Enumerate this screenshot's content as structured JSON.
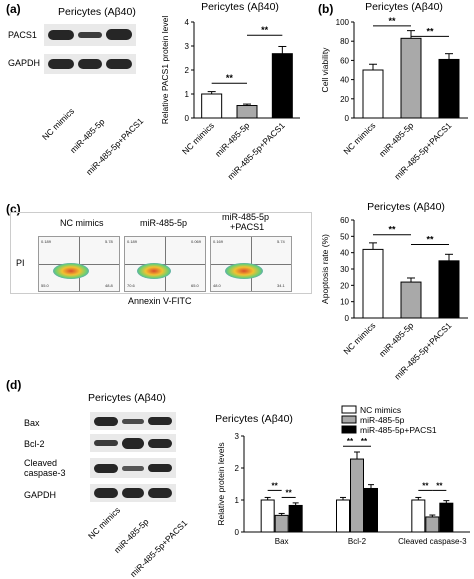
{
  "panels": {
    "a": {
      "label": "(a)",
      "blot_title": "Pericytes (Aβ40)",
      "blot_rows": [
        "PACS1",
        "GAPDH"
      ],
      "sample_labels": [
        "NC mimics",
        "miR-485-5p",
        "miR-485-5p+PACS1"
      ]
    },
    "b": {
      "label": "(b)"
    },
    "c": {
      "label": "(c)",
      "flow_titles": [
        "NC mimics",
        "miR-485-5p",
        "miR-485-5p\n+PACS1"
      ],
      "flow_title_lines": [
        [
          "NC mimics"
        ],
        [
          "miR-485-5p"
        ],
        [
          "miR-485-5p",
          "+PACS1"
        ]
      ],
      "flow_ylabel": "PI",
      "flow_xlabel": "Annexin V-FITC",
      "quadrant_values": [
        {
          "q1": "0.189",
          "q2": "5.78",
          "q3": "48.8",
          "q4": "55.0"
        },
        {
          "q1": "0.189",
          "q2": "0.069",
          "q3": "65.0",
          "q4": "70.6"
        },
        {
          "q1": "0.169",
          "q2": "5.74",
          "q3": "34.1",
          "q4": "48.0"
        }
      ]
    },
    "d": {
      "label": "(d)",
      "blot_title": "Pericytes (Aβ40)",
      "blot_rows": [
        "Bax",
        "Bcl-2",
        "Cleaved\ncaspase-3",
        "GAPDH"
      ],
      "blot_row_lines": [
        [
          "Bax"
        ],
        [
          "Bcl-2"
        ],
        [
          "Cleaved",
          "caspase-3"
        ],
        [
          "GAPDH"
        ]
      ],
      "sample_labels": [
        "NC mimics",
        "miR-485-5p",
        "miR-485-5p+PACS1"
      ]
    }
  },
  "colors": {
    "nc": "#ffffff",
    "mir": "#a9a9a9",
    "mir_pacs1": "#000000"
  },
  "chart_data": [
    {
      "id": "a",
      "type": "bar",
      "title": "Pericytes (Aβ40)",
      "ylabel": "Relative PACS1 protein level",
      "categories": [
        "NC mimics",
        "miR-485-5p",
        "miR-485-5p+PACS1"
      ],
      "values": [
        1.0,
        0.52,
        2.68
      ],
      "errors": [
        0.1,
        0.06,
        0.3
      ],
      "ylim": [
        0,
        4
      ],
      "yticks": [
        0,
        1,
        2,
        3,
        4
      ],
      "colors": [
        "#ffffff",
        "#a9a9a9",
        "#000000"
      ],
      "significance": [
        {
          "from": 0,
          "to": 1,
          "y": 1.45,
          "text": "**"
        },
        {
          "from": 1,
          "to": 2,
          "y": 3.45,
          "text": "**"
        }
      ]
    },
    {
      "id": "b",
      "type": "bar",
      "title": "Pericytes (Aβ40)",
      "ylabel": "Cell viability",
      "categories": [
        "NC mimics",
        "miR-485-5p",
        "miR-485-5p+PACS1"
      ],
      "values": [
        50,
        83,
        61
      ],
      "errors": [
        6,
        8,
        6
      ],
      "ylim": [
        0,
        100
      ],
      "yticks": [
        0,
        20,
        40,
        60,
        80,
        100
      ],
      "colors": [
        "#ffffff",
        "#a9a9a9",
        "#000000"
      ],
      "significance": [
        {
          "from": 0,
          "to": 1,
          "y": 96,
          "text": "**"
        },
        {
          "from": 1,
          "to": 2,
          "y": 85,
          "text": "**"
        }
      ]
    },
    {
      "id": "c",
      "type": "bar",
      "title": "Pericytes (Aβ40)",
      "ylabel": "Apoptosis rate (%)",
      "categories": [
        "NC mimics",
        "miR-485-5p",
        "miR-485-5p+PACS1"
      ],
      "values": [
        42,
        22,
        35
      ],
      "errors": [
        4,
        2.5,
        4
      ],
      "ylim": [
        0,
        60
      ],
      "yticks": [
        0,
        10,
        20,
        30,
        40,
        50,
        60
      ],
      "colors": [
        "#ffffff",
        "#a9a9a9",
        "#000000"
      ],
      "significance": [
        {
          "from": 0,
          "to": 1,
          "y": 51,
          "text": "**"
        },
        {
          "from": 1,
          "to": 2,
          "y": 45,
          "text": "**"
        }
      ]
    },
    {
      "id": "d",
      "type": "bar",
      "title": "Pericytes (Aβ40)",
      "ylabel": "Relative protein levels",
      "categories": [
        "Bax",
        "Bcl-2",
        "Cleaved caspase-3"
      ],
      "series": [
        {
          "name": "NC mimics",
          "values": [
            1.0,
            1.0,
            1.0
          ],
          "errors": [
            0.08,
            0.08,
            0.08
          ],
          "color": "#ffffff"
        },
        {
          "name": "miR-485-5p",
          "values": [
            0.52,
            2.28,
            0.47
          ],
          "errors": [
            0.06,
            0.22,
            0.06
          ],
          "color": "#a9a9a9"
        },
        {
          "name": "miR-485-5p+PACS1",
          "values": [
            0.83,
            1.36,
            0.9
          ],
          "errors": [
            0.08,
            0.12,
            0.08
          ],
          "color": "#000000"
        }
      ],
      "ylim": [
        0,
        3
      ],
      "yticks": [
        0,
        1,
        2,
        3
      ],
      "legend_position": "top-right",
      "significance": [
        {
          "group": 0,
          "from": 0,
          "to": 1,
          "y": 1.3,
          "text": "**"
        },
        {
          "group": 0,
          "from": 1,
          "to": 2,
          "y": 1.08,
          "text": "**"
        },
        {
          "group": 1,
          "from": 0,
          "to": 1,
          "y": 2.68,
          "text": "**"
        },
        {
          "group": 1,
          "from": 1,
          "to": 2,
          "y": 2.68,
          "text": "**"
        },
        {
          "group": 2,
          "from": 0,
          "to": 1,
          "y": 1.3,
          "text": "**"
        },
        {
          "group": 2,
          "from": 1,
          "to": 2,
          "y": 1.3,
          "text": "**"
        }
      ]
    }
  ]
}
